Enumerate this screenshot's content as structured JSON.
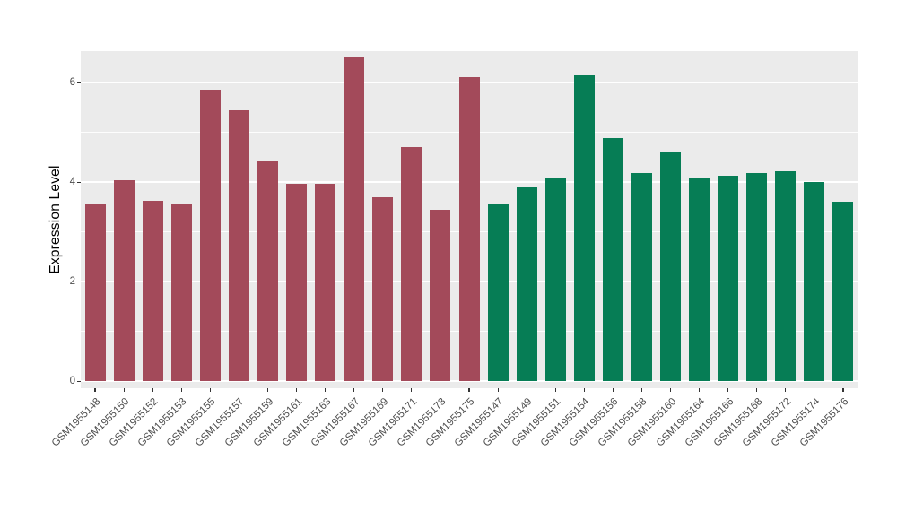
{
  "chart_data": {
    "type": "bar",
    "title": "",
    "xlabel": "",
    "ylabel": "Expression Level",
    "yticks": [
      0,
      2,
      4,
      6
    ],
    "yticks_minor": [
      1,
      3,
      5
    ],
    "axis_range": [
      -0.14,
      6.63
    ],
    "grid": true,
    "legend": false,
    "panel_background": "#EBEBEB",
    "grid_color": "#FFFFFF",
    "tick_label_color": "#4D4D4D",
    "categories": [
      "GSM1955148",
      "GSM1955150",
      "GSM1955152",
      "GSM1955153",
      "GSM1955155",
      "GSM1955157",
      "GSM1955159",
      "GSM1955161",
      "GSM1955163",
      "GSM1955167",
      "GSM1955169",
      "GSM1955171",
      "GSM1955173",
      "GSM1955175",
      "GSM1955147",
      "GSM1955149",
      "GSM1955151",
      "GSM1955154",
      "GSM1955156",
      "GSM1955158",
      "GSM1955160",
      "GSM1955164",
      "GSM1955166",
      "GSM1955168",
      "GSM1955172",
      "GSM1955174",
      "GSM1955176"
    ],
    "values": [
      3.55,
      4.03,
      3.62,
      3.55,
      5.85,
      5.45,
      4.42,
      3.96,
      3.96,
      6.5,
      3.7,
      4.7,
      3.45,
      6.1,
      3.55,
      3.9,
      4.1,
      6.15,
      4.88,
      4.18,
      4.6,
      4.1,
      4.12,
      4.18,
      4.22,
      4.0,
      3.6
    ],
    "groups": [
      "maroon",
      "maroon",
      "maroon",
      "maroon",
      "maroon",
      "maroon",
      "maroon",
      "maroon",
      "maroon",
      "maroon",
      "maroon",
      "maroon",
      "maroon",
      "maroon",
      "green",
      "green",
      "green",
      "green",
      "green",
      "green",
      "green",
      "green",
      "green",
      "green",
      "green",
      "green",
      "green"
    ],
    "group_colors": {
      "maroon": "#A34A5A",
      "green": "#067D55"
    }
  }
}
